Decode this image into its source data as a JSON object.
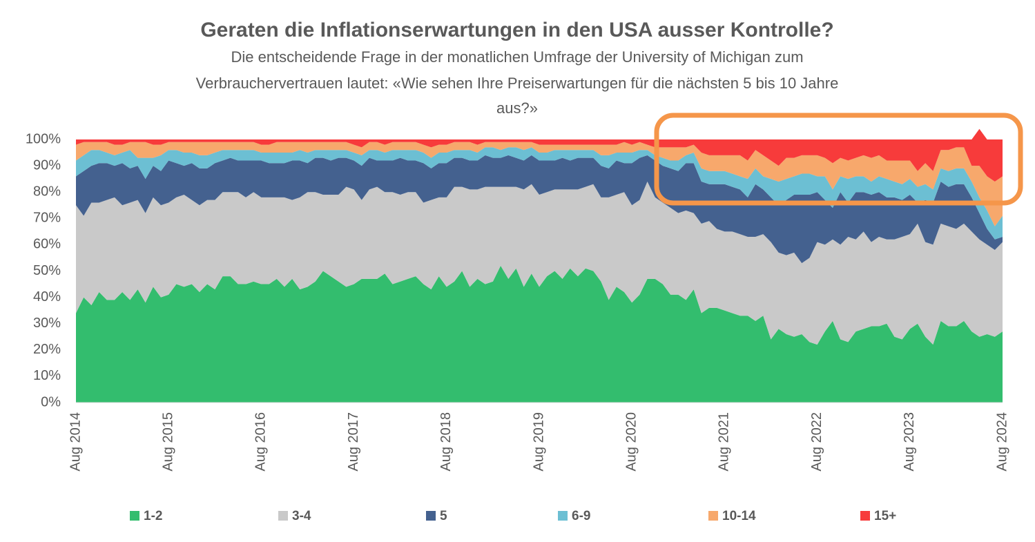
{
  "chart_data": {
    "type": "stacked_area",
    "title": "Geraten die Inflationserwartungen in den USA ausser Kontrolle?",
    "subtitle": [
      "Die entscheidende Frage in der monatlichen Umfrage der University of Michigan zum",
      "Verbrauchervertrauen  lautet: «Wie sehen Ihre Preiserwartungen für die nächsten 5 bis 10 Jahre",
      "aus?»"
    ],
    "categories": [
      "Aug 2014",
      null,
      null,
      null,
      null,
      null,
      null,
      null,
      null,
      null,
      null,
      null,
      "Aug 2015",
      null,
      null,
      null,
      null,
      null,
      null,
      null,
      null,
      null,
      null,
      null,
      "Aug 2016",
      null,
      null,
      null,
      null,
      null,
      null,
      null,
      null,
      null,
      null,
      null,
      "Aug 2017",
      null,
      null,
      null,
      null,
      null,
      null,
      null,
      null,
      null,
      null,
      null,
      "Aug 2018",
      null,
      null,
      null,
      null,
      null,
      null,
      null,
      null,
      null,
      null,
      null,
      "Aug 2019",
      null,
      null,
      null,
      null,
      null,
      null,
      null,
      null,
      null,
      null,
      null,
      "Aug 2020",
      null,
      null,
      null,
      null,
      null,
      null,
      null,
      null,
      null,
      null,
      null,
      "Aug 2021",
      null,
      null,
      null,
      null,
      null,
      null,
      null,
      null,
      null,
      null,
      null,
      "Aug 2022",
      null,
      null,
      null,
      null,
      null,
      null,
      null,
      null,
      null,
      null,
      null,
      "Aug 2023",
      null,
      null,
      null,
      null,
      null,
      null,
      null,
      null,
      null,
      null,
      null,
      "Aug 2024"
    ],
    "series": [
      {
        "name": "1-2",
        "color": "#33bd6e",
        "values": [
          34,
          40,
          37,
          42,
          39,
          39,
          42,
          39,
          43,
          38,
          44,
          40,
          41,
          45,
          44,
          45,
          42,
          45,
          43,
          48,
          48,
          45,
          45,
          46,
          45,
          45,
          47,
          44,
          47,
          43,
          44,
          46,
          50,
          48,
          46,
          44,
          45,
          47,
          47,
          47,
          49,
          45,
          46,
          47,
          48,
          45,
          43,
          48,
          44,
          46,
          50,
          44,
          47,
          45,
          46,
          52,
          47,
          51,
          44,
          49,
          44,
          48,
          50,
          47,
          51,
          48,
          51,
          50,
          46,
          39,
          44,
          42,
          38,
          41,
          47,
          47,
          45,
          41,
          41,
          39,
          43,
          34,
          36,
          36,
          35,
          34,
          33,
          33,
          31,
          33,
          24,
          28,
          26,
          25,
          26,
          23,
          22,
          27,
          31,
          24,
          23,
          27,
          28,
          29,
          29,
          30,
          25,
          24,
          28,
          30,
          25,
          22,
          31,
          29,
          29,
          31,
          27,
          25,
          26,
          25,
          27
        ]
      },
      {
        "name": "3-4",
        "color": "#c9c9c9",
        "values": [
          41,
          31,
          39,
          34,
          38,
          39,
          33,
          37,
          34,
          34,
          34,
          35,
          35,
          33,
          35,
          32,
          33,
          32,
          34,
          32,
          32,
          35,
          33,
          34,
          33,
          33,
          31,
          34,
          30,
          35,
          36,
          34,
          29,
          31,
          33,
          38,
          36,
          30,
          34,
          35,
          31,
          35,
          33,
          33,
          32,
          31,
          34,
          30,
          34,
          36,
          32,
          37,
          34,
          37,
          36,
          30,
          35,
          31,
          37,
          34,
          35,
          32,
          31,
          34,
          30,
          33,
          31,
          33,
          32,
          39,
          35,
          38,
          37,
          36,
          37,
          31,
          31,
          33,
          31,
          34,
          29,
          34,
          33,
          30,
          30,
          31,
          31,
          30,
          32,
          31,
          37,
          29,
          30,
          32,
          27,
          32,
          39,
          33,
          31,
          36,
          40,
          35,
          37,
          32,
          34,
          32,
          37,
          39,
          36,
          38,
          36,
          38,
          37,
          38,
          37,
          37,
          38,
          37,
          34,
          33,
          34
        ]
      },
      {
        "name": "5",
        "color": "#44618f",
        "values": [
          11,
          17,
          14,
          15,
          14,
          12,
          16,
          13,
          13,
          13,
          12,
          13,
          16,
          13,
          11,
          14,
          14,
          12,
          14,
          12,
          13,
          12,
          14,
          12,
          14,
          13,
          13,
          13,
          15,
          14,
          11,
          13,
          14,
          13,
          14,
          11,
          11,
          13,
          12,
          10,
          12,
          12,
          14,
          12,
          12,
          15,
          12,
          13,
          13,
          11,
          11,
          11,
          11,
          12,
          11,
          11,
          12,
          11,
          11,
          11,
          13,
          12,
          11,
          12,
          11,
          12,
          11,
          10,
          12,
          11,
          13,
          11,
          16,
          16,
          10,
          14,
          14,
          15,
          16,
          18,
          19,
          16,
          14,
          17,
          18,
          17,
          17,
          15,
          20,
          17,
          17,
          18,
          21,
          22,
          26,
          24,
          19,
          17,
          12,
          20,
          13,
          18,
          15,
          18,
          17,
          16,
          16,
          14,
          15,
          8,
          16,
          16,
          16,
          15,
          17,
          15,
          13,
          10,
          6,
          4,
          2
        ]
      },
      {
        "name": "6-9",
        "color": "#6cbfd3",
        "values": [
          6,
          6,
          6,
          5,
          4,
          4,
          4,
          7,
          3,
          8,
          3,
          6,
          4,
          5,
          5,
          4,
          5,
          5,
          4,
          4,
          3,
          4,
          4,
          4,
          3,
          4,
          4,
          4,
          3,
          4,
          4,
          3,
          3,
          4,
          3,
          3,
          3,
          4,
          3,
          4,
          3,
          4,
          3,
          4,
          4,
          4,
          4,
          4,
          4,
          3,
          3,
          4,
          3,
          3,
          4,
          3,
          3,
          4,
          4,
          3,
          3,
          3,
          4,
          3,
          4,
          3,
          3,
          3,
          4,
          5,
          3,
          4,
          4,
          3,
          2,
          2,
          3,
          3,
          4,
          3,
          4,
          5,
          5,
          5,
          5,
          5,
          5,
          7,
          6,
          5,
          7,
          9,
          8,
          7,
          8,
          8,
          6,
          9,
          7,
          6,
          9,
          6,
          6,
          5,
          6,
          7,
          6,
          6,
          6,
          6,
          6,
          5,
          5,
          6,
          6,
          6,
          6,
          6,
          7,
          5,
          8
        ]
      },
      {
        "name": "10-14",
        "color": "#f7a86c",
        "values": [
          6,
          5,
          3,
          3,
          4,
          4,
          3,
          3,
          6,
          6,
          5,
          4,
          3,
          3,
          4,
          4,
          5,
          5,
          4,
          3,
          3,
          3,
          3,
          3,
          3,
          3,
          4,
          4,
          4,
          3,
          4,
          3,
          3,
          3,
          3,
          3,
          3,
          3,
          3,
          3,
          3,
          3,
          3,
          3,
          3,
          3,
          4,
          3,
          3,
          3,
          3,
          3,
          3,
          2,
          2,
          3,
          2,
          2,
          3,
          2,
          3,
          3,
          2,
          2,
          2,
          2,
          2,
          2,
          4,
          4,
          3,
          4,
          3,
          3,
          2,
          3,
          4,
          5,
          5,
          3,
          3,
          6,
          6,
          6,
          6,
          7,
          8,
          7,
          7,
          8,
          7,
          6,
          8,
          7,
          7,
          7,
          8,
          7,
          10,
          7,
          7,
          7,
          8,
          9,
          8,
          7,
          8,
          9,
          7,
          6,
          8,
          7,
          7,
          8,
          8,
          8,
          6,
          12,
          13,
          17,
          15
        ]
      },
      {
        "name": "15+",
        "color": "#f73b3b",
        "values": [
          2,
          1,
          1,
          1,
          1,
          2,
          2,
          1,
          1,
          1,
          2,
          2,
          1,
          1,
          1,
          1,
          1,
          1,
          1,
          1,
          1,
          1,
          1,
          1,
          2,
          2,
          1,
          1,
          1,
          1,
          1,
          1,
          1,
          1,
          1,
          1,
          2,
          3,
          1,
          1,
          2,
          1,
          1,
          1,
          1,
          2,
          3,
          2,
          2,
          1,
          1,
          1,
          2,
          1,
          1,
          1,
          1,
          1,
          1,
          1,
          2,
          2,
          2,
          2,
          2,
          2,
          2,
          2,
          2,
          2,
          2,
          1,
          2,
          1,
          2,
          3,
          3,
          3,
          3,
          3,
          2,
          5,
          6,
          6,
          6,
          6,
          6,
          8,
          4,
          6,
          8,
          10,
          7,
          7,
          6,
          6,
          6,
          7,
          9,
          7,
          8,
          7,
          6,
          7,
          6,
          8,
          8,
          8,
          8,
          12,
          9,
          12,
          4,
          4,
          3,
          3,
          10,
          14,
          14,
          16,
          14
        ]
      }
    ],
    "ylim": [
      0,
      100
    ],
    "yticks": [
      {
        "value": 0,
        "label": "0%"
      },
      {
        "value": 10,
        "label": "10%"
      },
      {
        "value": 20,
        "label": "20%"
      },
      {
        "value": 30,
        "label": "30%"
      },
      {
        "value": 40,
        "label": "40%"
      },
      {
        "value": 50,
        "label": "50%"
      },
      {
        "value": 60,
        "label": "60%"
      },
      {
        "value": 70,
        "label": "70%"
      },
      {
        "value": 80,
        "label": "80%"
      },
      {
        "value": 90,
        "label": "90%"
      },
      {
        "value": 100,
        "label": "100%"
      }
    ],
    "grid": false,
    "legend": "bottom"
  }
}
